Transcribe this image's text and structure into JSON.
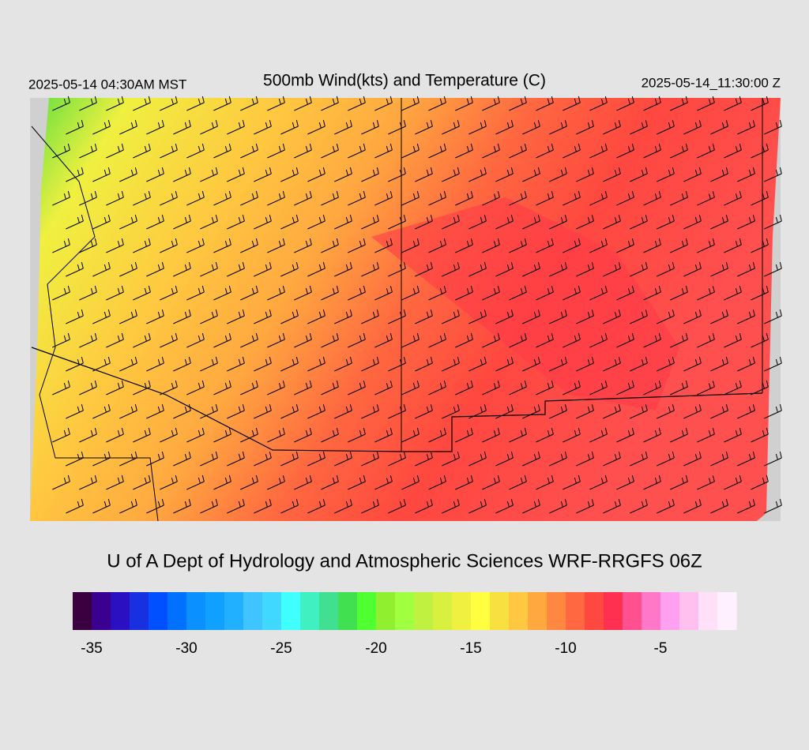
{
  "header": {
    "left": "2025-05-14 04:30AM MST",
    "title": "500mb Wind(kts) and Temperature (C)",
    "right": "2025-05-14_11:30:00 Z"
  },
  "footer": {
    "credit": "U of A Dept of Hydrology and Atmospheric Sciences WRF-RRGFS 06Z"
  },
  "colorbar": {
    "lim": [
      -36,
      -1
    ],
    "ticks": [
      -35,
      -30,
      -25,
      -20,
      -15,
      -10,
      -5
    ],
    "colors": [
      "#3a0040",
      "#3a0090",
      "#2a10c0",
      "#1830e0",
      "#0050ff",
      "#0070ff",
      "#0a90ff",
      "#10a0ff",
      "#20b0ff",
      "#40c4ff",
      "#40d8ff",
      "#40ffff",
      "#40f0c0",
      "#40e090",
      "#40e050",
      "#50ff30",
      "#90f030",
      "#a0ff40",
      "#c0f040",
      "#d8f040",
      "#f0f040",
      "#ffff40",
      "#f8e040",
      "#ffc840",
      "#ffa840",
      "#ff8840",
      "#ff6840",
      "#ff4840",
      "#ff3050",
      "#ff5090",
      "#ff78c8",
      "#ffa0f0",
      "#ffc0f0",
      "#ffe0f8",
      "#fff0ff"
    ]
  }
}
